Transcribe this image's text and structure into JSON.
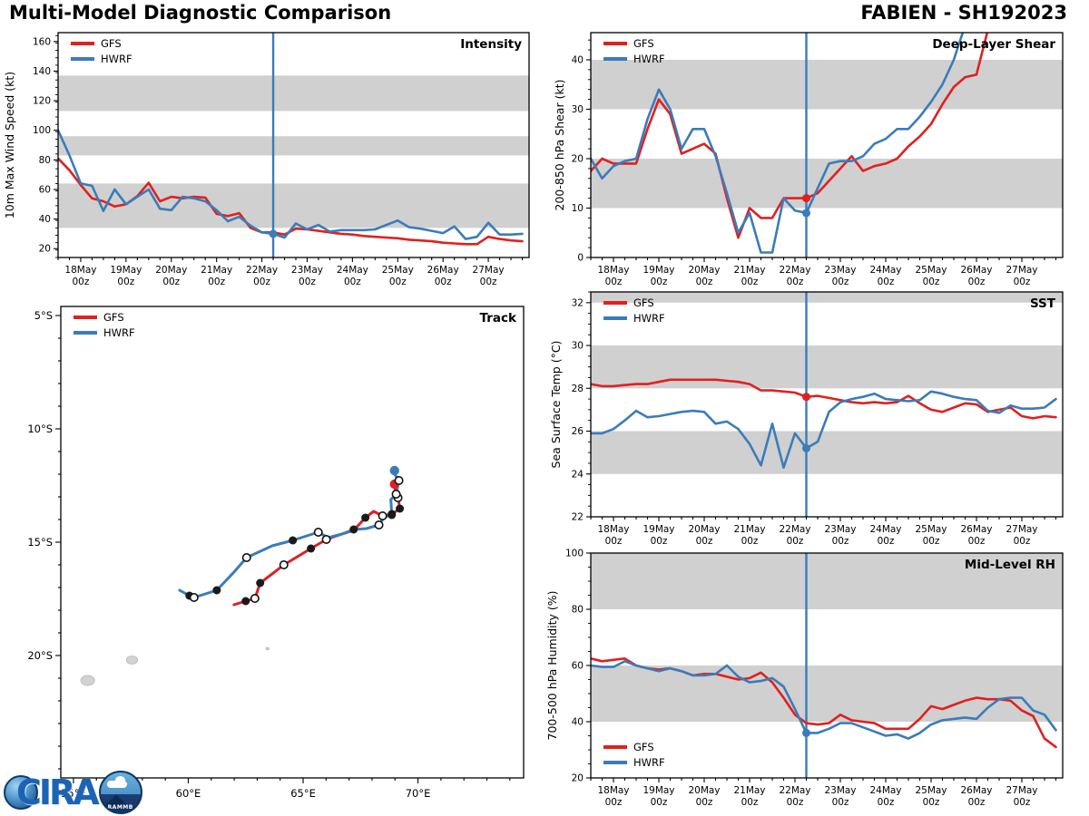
{
  "page": {
    "title": "Multi-Model Diagnostic Comparison",
    "storm_title": "FABIEN - SH192023"
  },
  "logo": {
    "cira": "CIRA",
    "rammb": "RAMMB"
  },
  "colors": {
    "gfs": "#e02020",
    "hwrf": "#3a7cba",
    "band": "#d0d0d0",
    "vline": "#3a7cba",
    "marker_black": "#1a1a1a",
    "island": "#d2d2d2"
  },
  "legend_entries": [
    "GFS",
    "HWRF"
  ],
  "time_axis": {
    "day_labels": [
      "18May",
      "19May",
      "20May",
      "21May",
      "22May",
      "23May",
      "24May",
      "25May",
      "26May",
      "27May"
    ],
    "sub_label": "00z",
    "xlim": [
      -0.5,
      9.9
    ],
    "start_day": -0.5,
    "step_days": 0.25,
    "analysis_day": 4.25
  },
  "chart_data": [
    {
      "id": "intensity",
      "type": "line",
      "corner_label": "Intensity",
      "ylabel": "10m Max Wind Speed (kt)",
      "ylim": [
        14,
        166
      ],
      "yticks": [
        20,
        40,
        60,
        80,
        100,
        120,
        140,
        160
      ],
      "yminor": 5,
      "bands": [
        [
          34,
          64
        ],
        [
          83,
          96
        ],
        [
          113,
          137
        ]
      ],
      "legend": "tl",
      "series": [
        {
          "name": "GFS",
          "color_key": "gfs",
          "values": [
            81,
            73,
            63,
            54,
            52,
            48.5,
            50,
            55.5,
            64.5,
            52,
            55,
            54,
            55,
            54.5,
            43.5,
            42,
            44,
            34,
            31,
            31,
            29.5,
            33.5,
            33,
            32,
            31,
            30,
            29.5,
            28.5,
            28,
            27.5,
            27,
            26,
            25.5,
            25,
            24,
            23.5,
            23,
            23,
            28,
            26.5,
            25.5,
            25
          ]
        },
        {
          "name": "HWRF",
          "color_key": "hwrf",
          "values": [
            100,
            83,
            64,
            62.5,
            45.5,
            60,
            50,
            55,
            60,
            47,
            46,
            55,
            54,
            52,
            46,
            38.5,
            41.5,
            35.5,
            31,
            30,
            27.5,
            37,
            33,
            36,
            31.5,
            32.5,
            32.5,
            32.5,
            33,
            36,
            39,
            34.5,
            33.5,
            32,
            30.5,
            35,
            26.5,
            28,
            37.5,
            29.5,
            29.5,
            30
          ]
        }
      ],
      "analysis_dots": [
        {
          "series": 1,
          "value": 30
        }
      ]
    },
    {
      "id": "shear",
      "type": "line",
      "corner_label": "Deep-Layer Shear",
      "ylabel": "200-850 hPa Shear (kt)",
      "ylim": [
        0,
        45.5
      ],
      "yticks": [
        0,
        10,
        20,
        30,
        40
      ],
      "yminor": 2,
      "bands": [
        [
          10,
          20
        ],
        [
          30,
          40
        ]
      ],
      "legend": "tl",
      "series": [
        {
          "name": "GFS",
          "color_key": "gfs",
          "values": [
            17.5,
            20,
            19,
            19,
            19,
            26,
            32,
            29,
            21,
            22,
            23,
            21,
            12,
            4,
            10,
            8,
            8,
            12,
            12,
            12,
            13,
            15.5,
            18,
            20.5,
            17.5,
            18.5,
            19,
            20,
            22.5,
            24.5,
            27,
            31,
            34.5,
            36.5,
            37,
            46,
            null,
            null,
            null,
            null,
            null,
            null
          ]
        },
        {
          "name": "HWRF",
          "color_key": "hwrf",
          "values": [
            20,
            16,
            18.5,
            19.5,
            20,
            28,
            34,
            30,
            22,
            26,
            26,
            20.5,
            13,
            5,
            9,
            1,
            1,
            12,
            9.5,
            9,
            14,
            19,
            19.5,
            19.5,
            20.5,
            23,
            24,
            26,
            26,
            28.5,
            31.5,
            35,
            40,
            47,
            null,
            null,
            null,
            null,
            null,
            null,
            null,
            null
          ]
        }
      ],
      "analysis_dots": [
        {
          "series": 0,
          "value": 12
        },
        {
          "series": 1,
          "value": 9
        }
      ]
    },
    {
      "id": "track",
      "type": "track",
      "corner_label": "Track",
      "xlim": [
        54.45,
        74.6
      ],
      "ylim": [
        4.6,
        25.4
      ],
      "xticks": [
        {
          "v": 55,
          "label": "55°E"
        },
        {
          "v": 60,
          "label": "60°E"
        },
        {
          "v": 65,
          "label": "65°E"
        },
        {
          "v": 70,
          "label": "70°E"
        }
      ],
      "yticks": [
        {
          "v": 5,
          "label": "5°S"
        },
        {
          "v": 10,
          "label": "10°S"
        },
        {
          "v": 15,
          "label": "15°S"
        },
        {
          "v": 20,
          "label": "20°S"
        }
      ],
      "minor_step": 1,
      "legend": "tl",
      "tracks": [
        {
          "name": "GFS",
          "color_key": "gfs",
          "points": [
            [
              61.99,
              17.76
            ],
            [
              62.5,
              17.6
            ],
            [
              62.9,
              17.48
            ],
            [
              63.13,
              16.8
            ],
            [
              63.65,
              16.4
            ],
            [
              64.16,
              16.0
            ],
            [
              64.75,
              15.64
            ],
            [
              65.34,
              15.28
            ],
            [
              66.01,
              14.88
            ],
            [
              66.69,
              14.64
            ],
            [
              67.2,
              14.48
            ],
            [
              67.71,
              13.92
            ],
            [
              68.07,
              13.64
            ],
            [
              68.46,
              13.84
            ],
            [
              68.86,
              13.76
            ],
            [
              69.21,
              13.52
            ],
            [
              69.13,
              13.04
            ],
            [
              69.01,
              12.72
            ],
            [
              68.98,
              12.44
            ]
          ],
          "filled": [
            [
              62.5,
              17.6
            ],
            [
              63.13,
              16.8
            ],
            [
              65.34,
              15.28
            ],
            [
              67.71,
              13.92
            ],
            [
              68.86,
              13.76
            ],
            [
              69.21,
              13.52
            ]
          ],
          "open": [
            [
              62.9,
              17.48
            ],
            [
              64.16,
              16.0
            ],
            [
              66.01,
              14.88
            ],
            [
              68.46,
              13.84
            ],
            [
              69.13,
              13.04
            ]
          ],
          "end": [
            68.98,
            12.44
          ]
        },
        {
          "name": "HWRF",
          "color_key": "hwrf",
          "points": [
            [
              59.62,
              17.12
            ],
            [
              60.05,
              17.36
            ],
            [
              60.25,
              17.44
            ],
            [
              61.24,
              17.12
            ],
            [
              61.99,
              16.32
            ],
            [
              62.54,
              15.68
            ],
            [
              63.65,
              15.16
            ],
            [
              64.55,
              14.92
            ],
            [
              65.66,
              14.56
            ],
            [
              66.09,
              14.8
            ],
            [
              66.69,
              14.64
            ],
            [
              67.2,
              14.44
            ],
            [
              67.75,
              14.4
            ],
            [
              68.3,
              14.24
            ],
            [
              68.54,
              13.88
            ],
            [
              68.86,
              13.8
            ],
            [
              68.82,
              13.12
            ],
            [
              69.05,
              12.88
            ],
            [
              69.17,
              12.28
            ],
            [
              69.01,
              12.04
            ],
            [
              68.98,
              11.84
            ]
          ],
          "filled": [
            [
              60.05,
              17.36
            ],
            [
              61.24,
              17.12
            ],
            [
              64.55,
              14.92
            ],
            [
              67.2,
              14.44
            ],
            [
              68.86,
              13.8
            ]
          ],
          "open": [
            [
              60.25,
              17.44
            ],
            [
              62.54,
              15.68
            ],
            [
              65.66,
              14.56
            ],
            [
              68.3,
              14.24
            ],
            [
              69.05,
              12.88
            ],
            [
              69.17,
              12.28
            ]
          ],
          "end": [
            68.98,
            11.84
          ]
        }
      ],
      "islands": [
        {
          "cx": 55.62,
          "cy": 21.1,
          "rx": 0.3,
          "ry": 0.22
        },
        {
          "cx": 57.55,
          "cy": 20.2,
          "rx": 0.24,
          "ry": 0.18
        },
        {
          "cx": 63.45,
          "cy": 19.7,
          "rx": 0.07,
          "ry": 0.05
        }
      ]
    },
    {
      "id": "sst",
      "type": "line",
      "corner_label": "SST",
      "ylabel": "Sea Surface Temp (°C)",
      "ylim": [
        22,
        32.5
      ],
      "yticks": [
        22,
        24,
        26,
        28,
        30,
        32
      ],
      "yminor": 0.5,
      "bands": [
        [
          24,
          26
        ],
        [
          28,
          30
        ],
        [
          32,
          32.5
        ]
      ],
      "legend": "tl",
      "series": [
        {
          "name": "GFS",
          "color_key": "gfs",
          "values": [
            28.2,
            28.1,
            28.1,
            28.15,
            28.2,
            28.2,
            28.3,
            28.4,
            28.4,
            28.4,
            28.4,
            28.4,
            28.35,
            28.3,
            28.2,
            27.9,
            27.9,
            27.85,
            27.8,
            27.6,
            27.65,
            27.55,
            27.45,
            27.35,
            27.3,
            27.35,
            27.3,
            27.35,
            27.65,
            27.3,
            27.0,
            26.9,
            27.1,
            27.3,
            27.25,
            26.9,
            27.0,
            27.1,
            26.7,
            26.6,
            26.7,
            26.65
          ]
        },
        {
          "name": "HWRF",
          "color_key": "hwrf",
          "values": [
            25.9,
            25.9,
            26.1,
            26.5,
            26.95,
            26.65,
            26.7,
            26.8,
            26.9,
            26.95,
            26.9,
            26.35,
            26.45,
            26.1,
            25.4,
            24.4,
            26.35,
            24.3,
            25.9,
            25.2,
            25.5,
            26.9,
            27.35,
            27.5,
            27.6,
            27.75,
            27.5,
            27.45,
            27.4,
            27.45,
            27.85,
            27.75,
            27.6,
            27.5,
            27.45,
            26.95,
            26.85,
            27.2,
            27.05,
            27.05,
            27.1,
            27.5
          ]
        }
      ],
      "analysis_dots": [
        {
          "series": 0,
          "value": 27.6
        },
        {
          "series": 1,
          "value": 25.2
        }
      ]
    },
    {
      "id": "rh",
      "type": "line",
      "corner_label": "Mid-Level RH",
      "ylabel": "700-500 hPa Humidity (%)",
      "ylim": [
        20,
        100
      ],
      "yticks": [
        20,
        40,
        60,
        80,
        100
      ],
      "yminor": 5,
      "bands": [
        [
          40,
          60
        ],
        [
          80,
          100
        ]
      ],
      "legend": "bl",
      "series": [
        {
          "name": "GFS",
          "color_key": "gfs",
          "values": [
            62.5,
            61.5,
            62,
            62.5,
            60,
            59,
            58.5,
            59,
            58,
            56.5,
            57,
            57,
            56,
            55,
            55.5,
            57.5,
            54,
            48.5,
            42.5,
            39.5,
            39,
            39.5,
            42.5,
            40.5,
            40,
            39.5,
            37.5,
            37.5,
            37.5,
            41,
            45.5,
            44.5,
            46,
            47.5,
            48.5,
            48,
            48,
            47.5,
            44,
            42,
            34,
            31
          ]
        },
        {
          "name": "HWRF",
          "color_key": "hwrf",
          "values": [
            60,
            59.5,
            59.5,
            61.5,
            60,
            59,
            58,
            59,
            58,
            56.5,
            56.5,
            57,
            60,
            56,
            54,
            54.5,
            55.5,
            52.5,
            44.5,
            36,
            36,
            37.5,
            39.5,
            39.5,
            38,
            36.5,
            35,
            35.5,
            34,
            36,
            39,
            40.5,
            41,
            41.5,
            41,
            45,
            48,
            48.5,
            48.5,
            44,
            42.5,
            37
          ]
        }
      ],
      "analysis_dots": [
        {
          "series": 1,
          "value": 36
        }
      ]
    }
  ]
}
